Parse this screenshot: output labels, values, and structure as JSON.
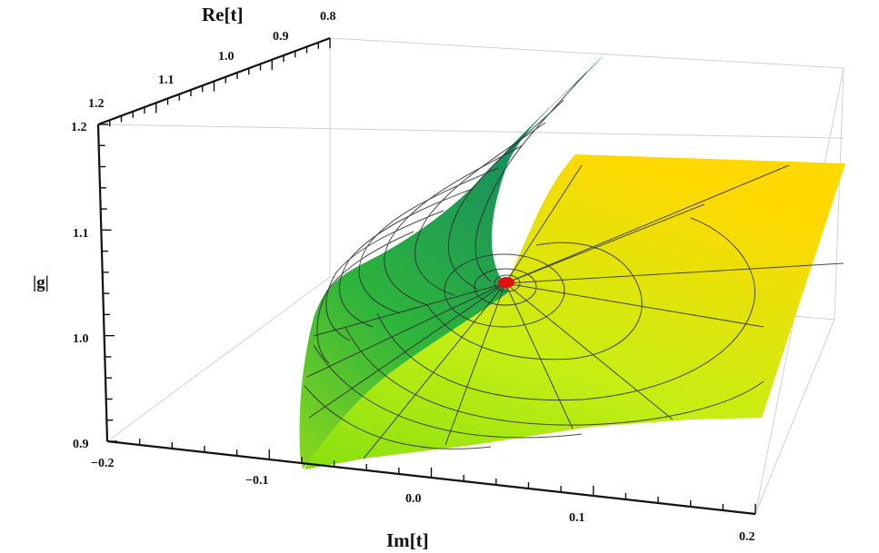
{
  "chart_data": {
    "type": "surface3d",
    "axes": {
      "re": {
        "label": "Re[t]",
        "range": [
          0.8,
          1.2
        ],
        "ticks": [
          "1.2",
          "1.1",
          "1.0",
          "0.9",
          "0.8"
        ]
      },
      "im": {
        "label": "Im[t]",
        "range": [
          -0.2,
          0.2
        ],
        "ticks": [
          "−0.2",
          "−0.1",
          "0.0",
          "0.1",
          "0.2"
        ]
      },
      "z": {
        "label": "|g|",
        "range": [
          0.9,
          1.2
        ],
        "ticks": [
          "0.9",
          "1.0",
          "1.1",
          "1.2"
        ]
      }
    },
    "surfaces": [
      {
        "name": "",
        "color_low": "#22a548",
        "color_high": "#138a6a",
        "description_values": {
          "z_min": 0.9,
          "z_max": 1.2
        }
      },
      {
        "name": "",
        "color_low": "#9be81a",
        "color_high": "#ffdc00",
        "description_values": {
          "z_min": 0.93,
          "z_max": 1.1
        }
      }
    ],
    "branch_point": {
      "re": 1.0,
      "im": 0.0,
      "z": 1.05,
      "color": "#e01010"
    },
    "grid": false,
    "bounding_box": true
  }
}
